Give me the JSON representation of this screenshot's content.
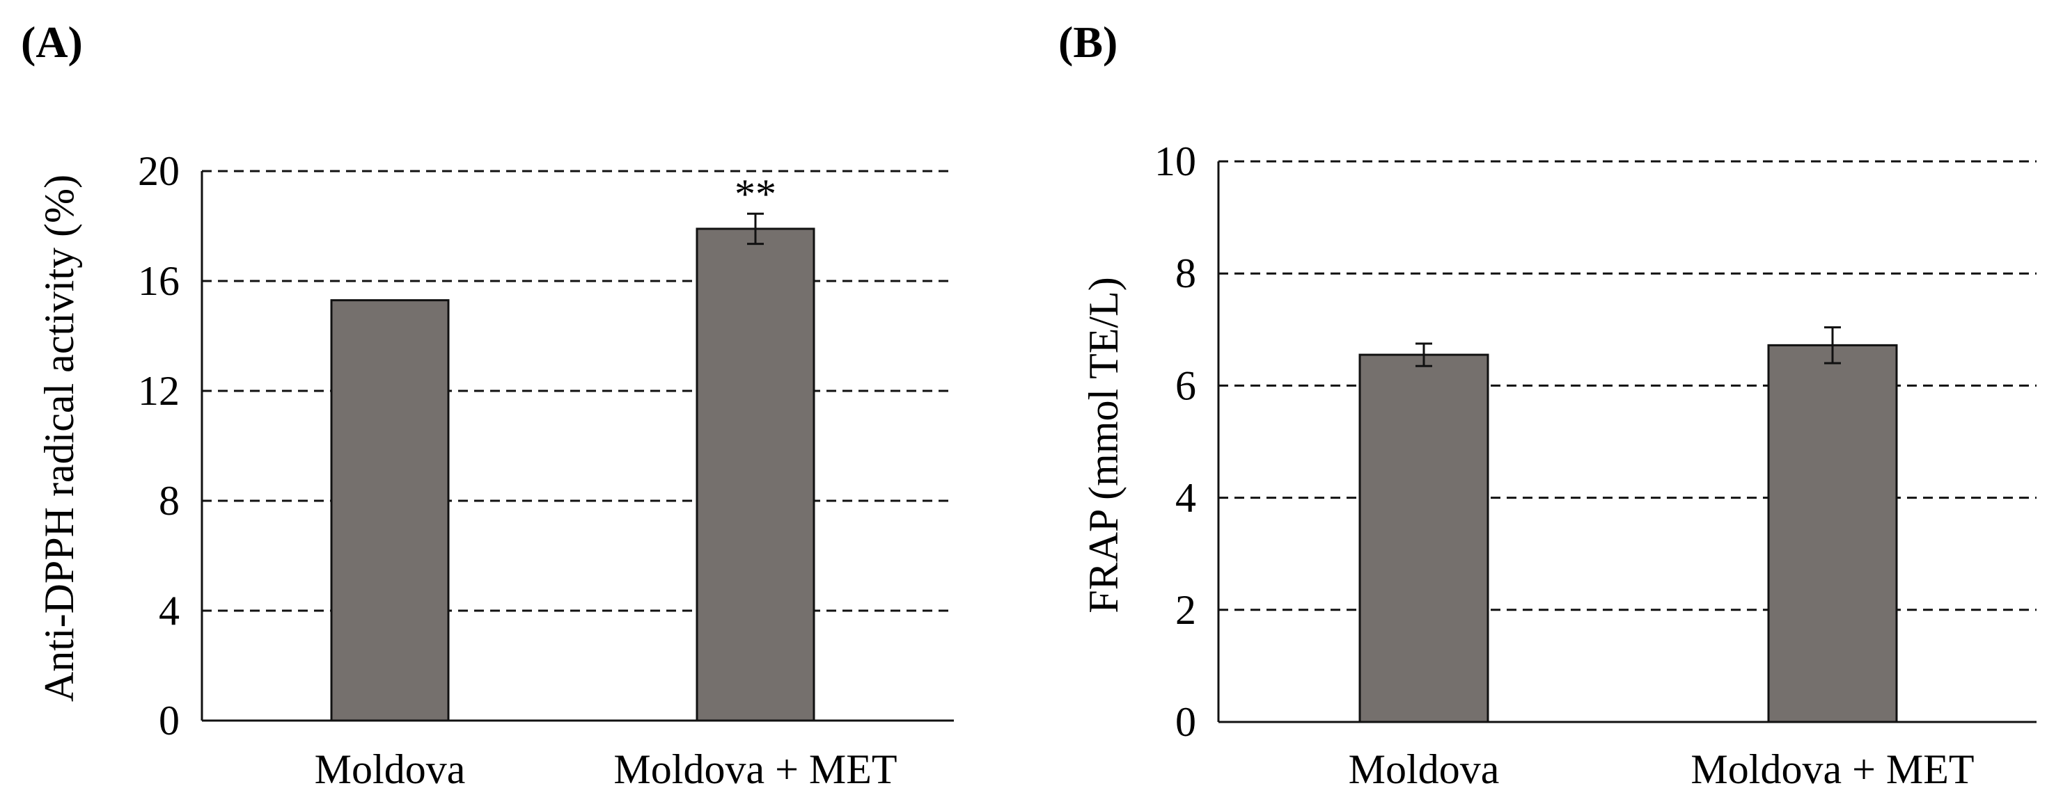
{
  "chart_data": [
    {
      "type": "bar",
      "panel_label": "(A)",
      "title": "",
      "xlabel": "",
      "ylabel": "Anti-DPPH radical activity (%)",
      "categories": [
        "Moldova",
        "Moldova + MET"
      ],
      "series": [
        {
          "name": "",
          "values": [
            15.3,
            17.9
          ],
          "errors": [
            0,
            0.55
          ]
        }
      ],
      "ylim": [
        0,
        20
      ],
      "yticks": [
        "0",
        "4",
        "8",
        "12",
        "16",
        "20"
      ],
      "ytick_values": [
        0,
        4,
        8,
        12,
        16,
        20
      ],
      "grid": true,
      "annotations": [
        {
          "category": "Moldova + MET",
          "text": "**"
        }
      ],
      "bar_color": "#75706d"
    },
    {
      "type": "bar",
      "panel_label": "(B)",
      "title": "",
      "xlabel": "",
      "ylabel": "FRAP (mmol TE/L)",
      "categories": [
        "Moldova",
        "Moldova + MET"
      ],
      "series": [
        {
          "name": "",
          "values": [
            6.55,
            6.72
          ],
          "errors": [
            0.2,
            0.32
          ]
        }
      ],
      "ylim": [
        0,
        10
      ],
      "yticks": [
        "0",
        "2",
        "4",
        "6",
        "8",
        "10"
      ],
      "ytick_values": [
        0,
        2,
        4,
        6,
        8,
        10
      ],
      "grid": true,
      "annotations": [],
      "bar_color": "#75706d"
    }
  ]
}
